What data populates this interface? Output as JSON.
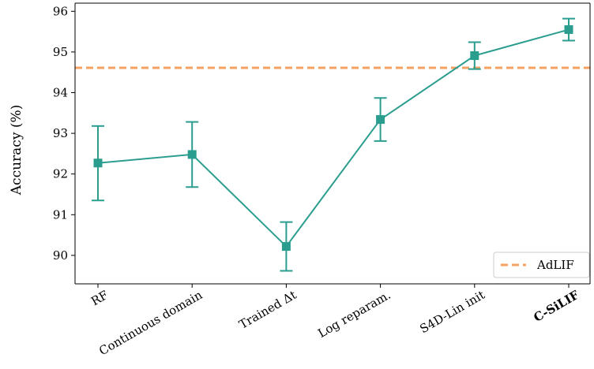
{
  "chart_data": {
    "type": "line",
    "categories": [
      "RF",
      "Continuous domain",
      "Trained Δt",
      "Log reparam.",
      "S4D-Lin init",
      "C-SiLIF"
    ],
    "bold_category": "C-SiLIF",
    "series": [
      {
        "name": "",
        "values": [
          92.27,
          92.48,
          90.22,
          93.34,
          94.91,
          95.55
        ],
        "err_low": [
          91.35,
          91.68,
          89.62,
          92.81,
          94.58,
          95.28
        ],
        "err_high": [
          93.18,
          93.28,
          90.82,
          93.87,
          95.24,
          95.82
        ],
        "color": "#2a9d8f"
      }
    ],
    "reference_line": {
      "name": "AdLIF",
      "value": 94.61,
      "color": "#f4a261",
      "style": "dashed"
    },
    "title": "",
    "xlabel": "",
    "ylabel": "Accuracy (%)",
    "ylim": [
      89.3,
      96.2
    ],
    "yticks": [
      90,
      91,
      92,
      93,
      94,
      95,
      96
    ],
    "grid": false,
    "legend_position": "lower-right"
  }
}
